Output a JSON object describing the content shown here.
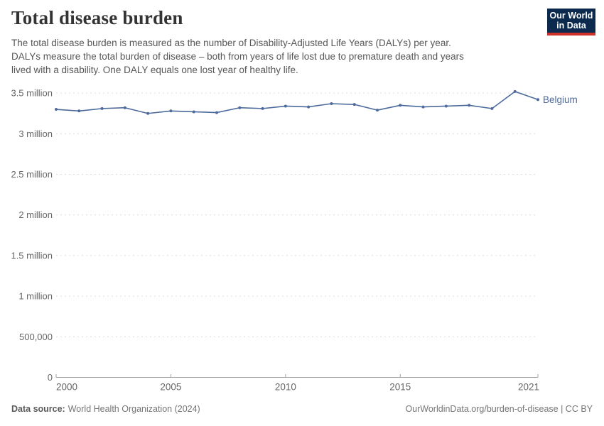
{
  "header": {
    "title": "Total disease burden",
    "subtitle_lines": [
      "The total disease burden is measured as the number of Disability-Adjusted Life Years (DALYs) per year.",
      "DALYs measure the total burden of disease – both from years of life lost due to premature death and years",
      "lived with a disability. One DALY equals one lost year of healthy life."
    ],
    "logo": {
      "line1": "Our World",
      "line2": "in Data",
      "bg_color": "#0B2A4E",
      "accent_color": "#CD3026"
    }
  },
  "chart_data": {
    "type": "line",
    "title": "Total disease burden",
    "x": [
      2000,
      2001,
      2002,
      2003,
      2004,
      2005,
      2006,
      2007,
      2008,
      2009,
      2010,
      2011,
      2012,
      2013,
      2014,
      2015,
      2016,
      2017,
      2018,
      2019,
      2020,
      2021
    ],
    "series": [
      {
        "name": "Belgium",
        "color": "#4C6A9C",
        "values": [
          3300000,
          3280000,
          3310000,
          3320000,
          3250000,
          3280000,
          3270000,
          3260000,
          3320000,
          3310000,
          3340000,
          3330000,
          3370000,
          3360000,
          3290000,
          3350000,
          3330000,
          3340000,
          3350000,
          3310000,
          3520000,
          3420000
        ]
      }
    ],
    "xticks": [
      {
        "value": 2000,
        "label": "2000"
      },
      {
        "value": 2005,
        "label": "2005"
      },
      {
        "value": 2010,
        "label": "2010"
      },
      {
        "value": 2015,
        "label": "2015"
      },
      {
        "value": 2021,
        "label": "2021"
      }
    ],
    "yticks": [
      {
        "value": 0,
        "label": "0"
      },
      {
        "value": 500000,
        "label": "500,000"
      },
      {
        "value": 1000000,
        "label": "1 million"
      },
      {
        "value": 1500000,
        "label": "1.5 million"
      },
      {
        "value": 2000000,
        "label": "2 million"
      },
      {
        "value": 2500000,
        "label": "2.5 million"
      },
      {
        "value": 3000000,
        "label": "3 million"
      },
      {
        "value": 3500000,
        "label": "3.5 million"
      }
    ],
    "xlim": [
      2000,
      2021
    ],
    "ylim": [
      0,
      3600000
    ],
    "grid": "horizontal-dashed",
    "legend_position": "end-of-line-label",
    "colors": {
      "gridline": "#dcdcdc",
      "axis_line": "#a0a0a0",
      "tick_text": "#666666"
    }
  },
  "footer": {
    "data_source_label": "Data source:",
    "data_source_value": "World Health Organization (2024)",
    "attribution": "OurWorldinData.org/burden-of-disease | CC BY"
  }
}
